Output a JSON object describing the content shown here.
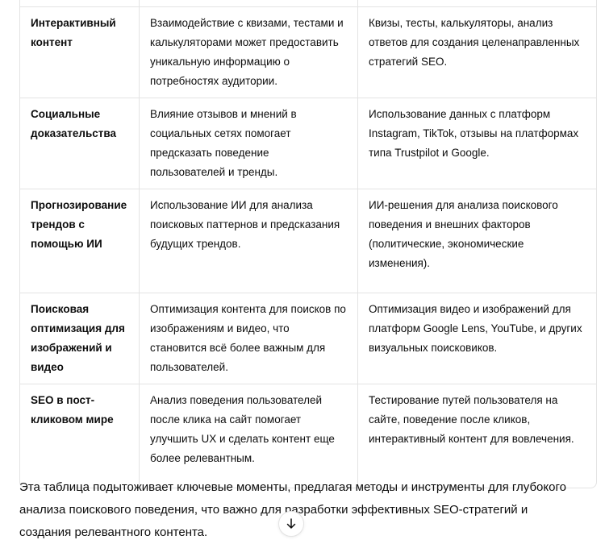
{
  "table": {
    "rows": [
      {
        "aspect": "Интерактивный контент",
        "description": "Взаимодействие с квизами, тестами и калькуляторами может предоставить уникальную информацию о потребностях аудитории.",
        "tools": "Квизы, тесты, калькуляторы, анализ ответов для создания целенаправленных стратегий SEO."
      },
      {
        "aspect": "Социальные доказательства",
        "description": "Влияние отзывов и мнений в социальных сетях помогает предсказать поведение пользователей и тренды.",
        "tools": "Использование данных с платформ Instagram, TikTok, отзывы на платформах типа Trustpilot и Google."
      },
      {
        "aspect": "Прогнозирование трендов с помощью ИИ",
        "description": "Использование ИИ для анализа поисковых паттернов и предсказания будущих трендов.",
        "tools": "ИИ-решения для анализа поискового поведения и внешних факторов (политические, экономические изменения)."
      },
      {
        "aspect": "Поисковая оптимизация для изображений и видео",
        "description": "Оптимизация контента для поисков по изображениям и видео, что становится всё более важным для пользователей.",
        "tools": "Оптимизация видео и изображений для платформ Google Lens, YouTube, и других визуальных поисковиков."
      },
      {
        "aspect": "SEO в пост-кликовом мире",
        "description": "Анализ поведения пользователей после клика на сайт помогает улучшить UX и сделать контент еще более релевантным.",
        "tools": "Тестирование путей пользователя на сайте, поведение после кликов, интерактивный контент для вовлечения."
      }
    ]
  },
  "summary": "Эта таблица подытоживает ключевые моменты, предлагая методы и инструменты для глубокого анализа поискового поведения, что важно для разработки эффективных SEO-стратегий и создания релевантного контента.",
  "scroll_button": {
    "icon": "arrow-down-icon"
  }
}
